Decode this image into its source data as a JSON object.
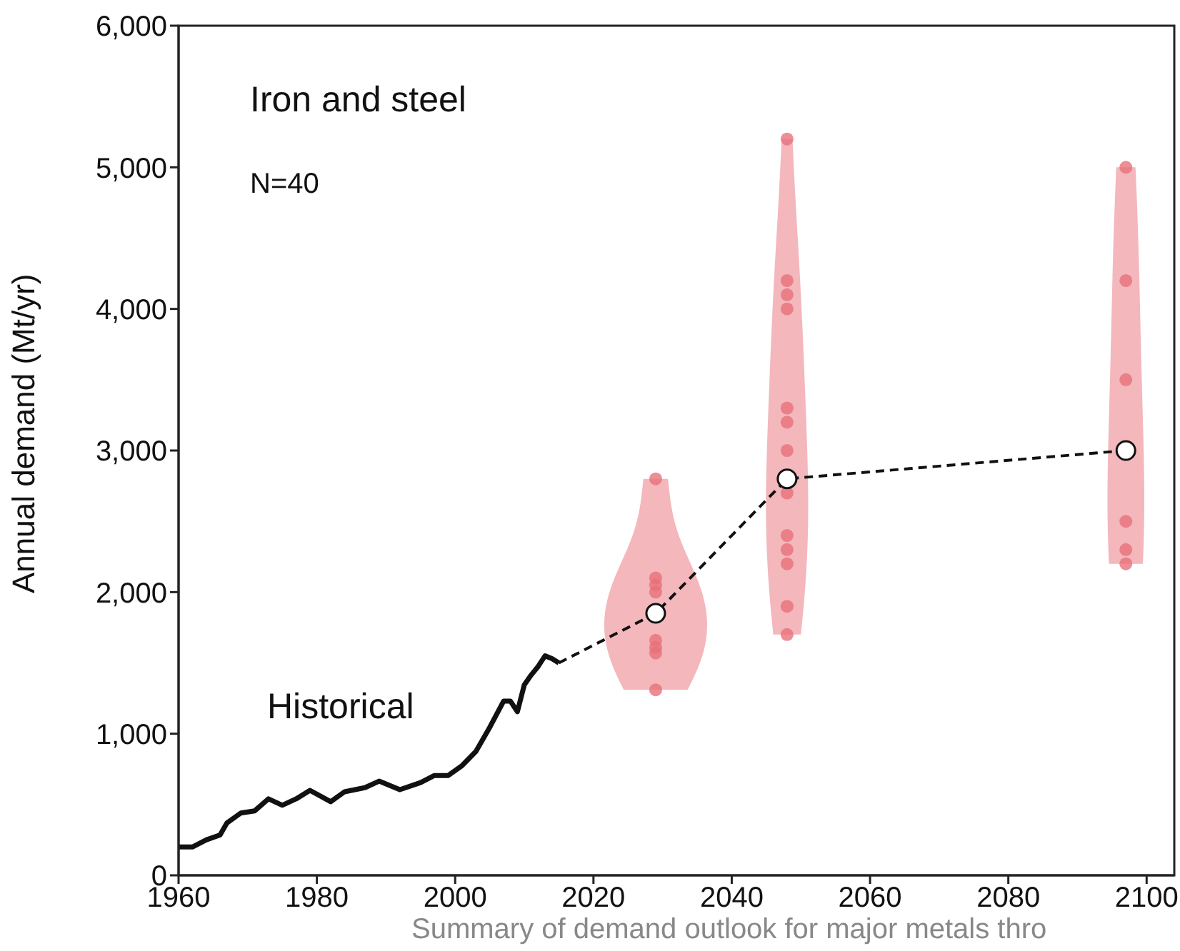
{
  "chart_data": {
    "type": "line",
    "title": "Iron and steel",
    "ylabel": "Annual demand (Mt/yr)",
    "annotations": [
      "N=40",
      "Historical",
      "Summary of demand outlook for major metals thro"
    ],
    "xlim": [
      1960,
      2104
    ],
    "xticks": [
      1960,
      1980,
      2000,
      2020,
      2040,
      2060,
      2080,
      2100
    ],
    "ylim": [
      0,
      6000
    ],
    "yticks": [
      0,
      {
        "value": 1000,
        "label": "1,000"
      },
      {
        "value": 2000,
        "label": "2,000"
      },
      {
        "value": 3000,
        "label": "3,000"
      },
      {
        "value": 4000,
        "label": "4,000"
      },
      {
        "value": 5000,
        "label": "5,000"
      },
      {
        "value": 6000,
        "label": "6,000"
      }
    ],
    "series": [
      {
        "color": "#111111",
        "line_style": "solid",
        "marker": "none",
        "x": [
          1960,
          1962,
          1964,
          1966,
          1967,
          1969,
          1971,
          1973,
          1975,
          1977,
          1979,
          1982,
          1984,
          1987,
          1989,
          1992,
          1995,
          1997,
          1999,
          2001,
          2003,
          2005,
          2007,
          2008,
          2009,
          2010,
          2011,
          2012,
          2013,
          2014,
          2015
        ],
        "values": [
          200,
          200,
          250,
          285,
          370,
          440,
          455,
          540,
          495,
          540,
          600,
          520,
          590,
          620,
          665,
          605,
          655,
          705,
          705,
          775,
          875,
          1045,
          1230,
          1230,
          1155,
          1345,
          1415,
          1475,
          1550,
          1530,
          1500
        ]
      },
      {
        "type": "scatter",
        "color": "#e8707a",
        "marker": "circle",
        "x": [
          2029,
          2029,
          2029,
          2029,
          2029,
          2029,
          2029,
          2029,
          2048,
          2048,
          2048,
          2048,
          2048,
          2048,
          2048,
          2048,
          2048,
          2048,
          2048,
          2048,
          2048,
          2097,
          2097,
          2097,
          2097,
          2097,
          2097
        ],
        "values": [
          2800,
          2100,
          2050,
          2000,
          1660,
          1610,
          1570,
          1310,
          5200,
          4200,
          4100,
          4000,
          3300,
          3200,
          3000,
          2700,
          2400,
          2300,
          2200,
          1900,
          1700,
          5000,
          4200,
          3500,
          2500,
          2300,
          2200
        ]
      },
      {
        "type": "line",
        "color": "#111111",
        "line_style": "dashed",
        "marker": "circle",
        "x": [
          2015,
          2029,
          2048,
          2097
        ],
        "values": [
          1500,
          1850,
          2800,
          3000
        ]
      }
    ]
  }
}
